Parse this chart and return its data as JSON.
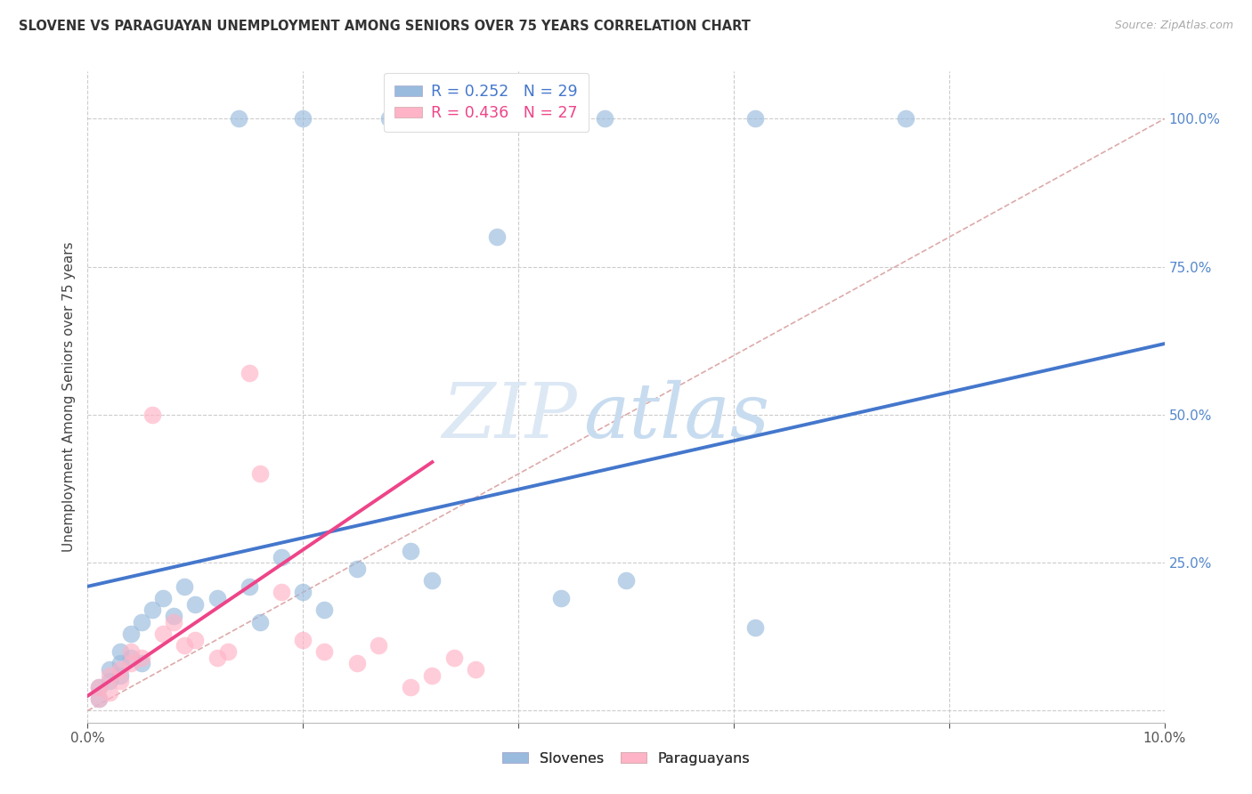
{
  "title": "SLOVENE VS PARAGUAYAN UNEMPLOYMENT AMONG SENIORS OVER 75 YEARS CORRELATION CHART",
  "source": "Source: ZipAtlas.com",
  "ylabel": "Unemployment Among Seniors over 75 years",
  "xlim": [
    0.0,
    0.1
  ],
  "ylim": [
    -0.02,
    1.08
  ],
  "xticks": [
    0.0,
    0.02,
    0.04,
    0.06,
    0.08,
    0.1
  ],
  "yticks_right": [
    0.0,
    0.25,
    0.5,
    0.75,
    1.0
  ],
  "yticklabels_right": [
    "",
    "25.0%",
    "50.0%",
    "75.0%",
    "100.0%"
  ],
  "legend_blue_label": "R = 0.252   N = 29",
  "legend_pink_label": "R = 0.436   N = 27",
  "blue_color": "#99BBDD",
  "pink_color": "#FFB3C6",
  "blue_line_color": "#4477CC",
  "pink_line_color": "#EE4488",
  "ref_line_color": "#DDAAAA",
  "watermark_zip": "ZIP",
  "watermark_atlas": "atlas",
  "slovene_x": [
    0.001,
    0.001,
    0.002,
    0.002,
    0.003,
    0.003,
    0.003,
    0.004,
    0.004,
    0.005,
    0.005,
    0.006,
    0.007,
    0.008,
    0.009,
    0.01,
    0.012,
    0.015,
    0.016,
    0.018,
    0.02,
    0.022,
    0.025,
    0.03,
    0.032,
    0.038,
    0.044,
    0.05,
    0.062
  ],
  "slovene_y": [
    0.02,
    0.04,
    0.05,
    0.07,
    0.06,
    0.08,
    0.1,
    0.09,
    0.13,
    0.08,
    0.15,
    0.17,
    0.19,
    0.16,
    0.21,
    0.18,
    0.19,
    0.21,
    0.15,
    0.26,
    0.2,
    0.17,
    0.24,
    0.27,
    0.22,
    0.8,
    0.19,
    0.22,
    0.14
  ],
  "paraguayan_x": [
    0.001,
    0.001,
    0.002,
    0.002,
    0.003,
    0.003,
    0.004,
    0.004,
    0.005,
    0.006,
    0.007,
    0.008,
    0.009,
    0.01,
    0.012,
    0.013,
    0.015,
    0.016,
    0.018,
    0.02,
    0.022,
    0.025,
    0.027,
    0.03,
    0.032,
    0.034,
    0.036
  ],
  "paraguayan_y": [
    0.02,
    0.04,
    0.03,
    0.06,
    0.05,
    0.07,
    0.08,
    0.1,
    0.09,
    0.5,
    0.13,
    0.15,
    0.11,
    0.12,
    0.09,
    0.1,
    0.57,
    0.4,
    0.2,
    0.12,
    0.1,
    0.08,
    0.11,
    0.04,
    0.06,
    0.09,
    0.07
  ],
  "blue_trend": [
    0.0,
    0.1,
    0.21,
    0.62
  ],
  "pink_trend": [
    0.0,
    0.032,
    0.025,
    0.42
  ],
  "ref_line": [
    0.0,
    0.1,
    0.0,
    1.0
  ],
  "top_blue_outliers_x": [
    0.014,
    0.02,
    0.028,
    0.035,
    0.048,
    0.062,
    0.076
  ],
  "top_blue_outliers_y": [
    1.0,
    1.0,
    1.0,
    1.0,
    1.0,
    1.0,
    1.0
  ]
}
